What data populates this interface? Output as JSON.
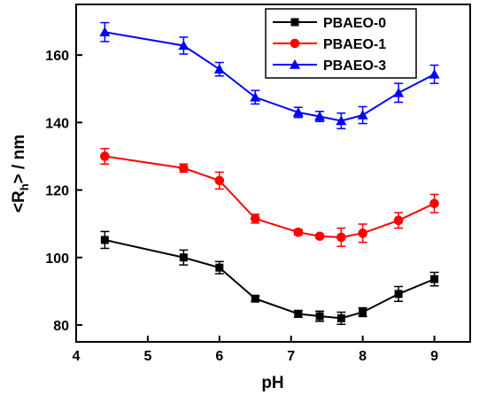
{
  "chart_data": {
    "type": "line",
    "xlabel": "pH",
    "ylabel": {
      "prefix": "<R",
      "sub": "h",
      "suffix": "> / nm"
    },
    "xlim": [
      4,
      9.5
    ],
    "ylim": [
      75,
      175
    ],
    "xticks": [
      4,
      5,
      6,
      7,
      8,
      9
    ],
    "yticks": [
      80,
      100,
      120,
      140,
      160
    ],
    "legend": {
      "position": "top-right"
    },
    "series": [
      {
        "name": "PBAEO-0",
        "color": "#000000",
        "marker": "square",
        "x": [
          4.4,
          5.5,
          6.0,
          6.5,
          7.1,
          7.4,
          7.7,
          8.0,
          8.5,
          9.0
        ],
        "y": [
          105.2,
          100.0,
          97.0,
          87.8,
          83.3,
          82.6,
          82.0,
          83.8,
          89.2,
          93.6
        ],
        "err": [
          2.5,
          2.2,
          1.8,
          0.8,
          1.0,
          1.5,
          1.8,
          1.3,
          2.2,
          2.0
        ]
      },
      {
        "name": "PBAEO-1",
        "color": "#ff0000",
        "marker": "circle",
        "x": [
          4.4,
          5.5,
          6.0,
          6.5,
          7.1,
          7.4,
          7.7,
          8.0,
          8.5,
          9.0
        ],
        "y": [
          130.0,
          126.5,
          122.8,
          111.5,
          107.5,
          106.3,
          106.0,
          107.2,
          111.0,
          116.0
        ],
        "err": [
          2.3,
          1.2,
          2.5,
          1.3,
          0.8,
          0.5,
          2.7,
          2.7,
          2.3,
          2.7
        ]
      },
      {
        "name": "PBAEO-3",
        "color": "#0000ff",
        "marker": "triangle",
        "x": [
          4.4,
          5.5,
          6.0,
          6.5,
          7.1,
          7.4,
          7.7,
          8.0,
          8.5,
          9.0
        ],
        "y": [
          166.8,
          162.8,
          155.8,
          147.5,
          143.0,
          141.8,
          140.5,
          142.2,
          148.8,
          154.3
        ],
        "err": [
          2.8,
          2.5,
          2.0,
          2.0,
          1.5,
          1.5,
          2.3,
          2.5,
          2.8,
          2.7
        ]
      }
    ]
  }
}
